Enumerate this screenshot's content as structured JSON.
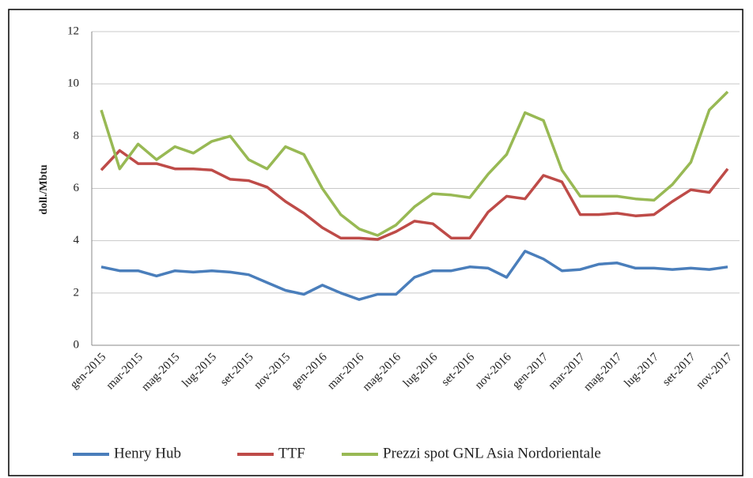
{
  "chart_data": {
    "type": "line",
    "y_label": "doll./Mbtu",
    "categories": [
      "gen-2015",
      null,
      "mar-2015",
      null,
      "mag-2015",
      null,
      "lug-2015",
      null,
      "set-2015",
      null,
      "nov-2015",
      null,
      "gen-2016",
      null,
      "mar-2016",
      null,
      "mag-2016",
      null,
      "lug-2016",
      null,
      "set-2016",
      null,
      "nov-2016",
      null,
      "gen-2017",
      null,
      "mar-2017",
      null,
      "mag-2017",
      null,
      "lug-2017",
      null,
      "set-2017",
      null,
      "nov-2017"
    ],
    "series": [
      {
        "name": "Henry Hub",
        "color": "#4a7ebb",
        "values": [
          3.0,
          2.85,
          2.85,
          2.65,
          2.85,
          2.8,
          2.85,
          2.8,
          2.7,
          2.4,
          2.1,
          1.95,
          2.3,
          2.0,
          1.75,
          1.95,
          1.95,
          2.6,
          2.85,
          2.85,
          3.0,
          2.95,
          2.6,
          3.6,
          3.3,
          2.85,
          2.9,
          3.1,
          3.15,
          2.95,
          2.95,
          2.9,
          2.95,
          2.9,
          3.0
        ]
      },
      {
        "name": "TTF",
        "color": "#be4b48",
        "values": [
          6.7,
          7.45,
          6.95,
          6.95,
          6.75,
          6.75,
          6.7,
          6.35,
          6.3,
          6.05,
          5.5,
          5.05,
          4.5,
          4.1,
          4.1,
          4.05,
          4.35,
          4.75,
          4.65,
          4.1,
          4.1,
          5.1,
          5.7,
          5.6,
          6.5,
          6.25,
          5.0,
          5.0,
          5.05,
          4.95,
          5.0,
          5.5,
          5.95,
          5.85,
          6.75
        ]
      },
      {
        "name": "Prezzi spot GNL Asia Nordorientale",
        "color": "#98b954",
        "values": [
          9.0,
          6.75,
          7.7,
          7.1,
          7.6,
          7.35,
          7.8,
          8.0,
          7.1,
          6.75,
          7.6,
          7.3,
          6.0,
          5.0,
          4.45,
          4.2,
          4.6,
          5.3,
          5.8,
          5.75,
          5.65,
          6.55,
          7.3,
          8.9,
          8.6,
          6.7,
          5.7,
          5.7,
          5.7,
          5.6,
          5.55,
          6.15,
          7.0,
          9.0,
          9.7
        ]
      }
    ],
    "ylim": [
      0,
      12
    ],
    "yticks": [
      0,
      2,
      4,
      6,
      8,
      10,
      12
    ],
    "grid": true,
    "legend": "bottom"
  }
}
